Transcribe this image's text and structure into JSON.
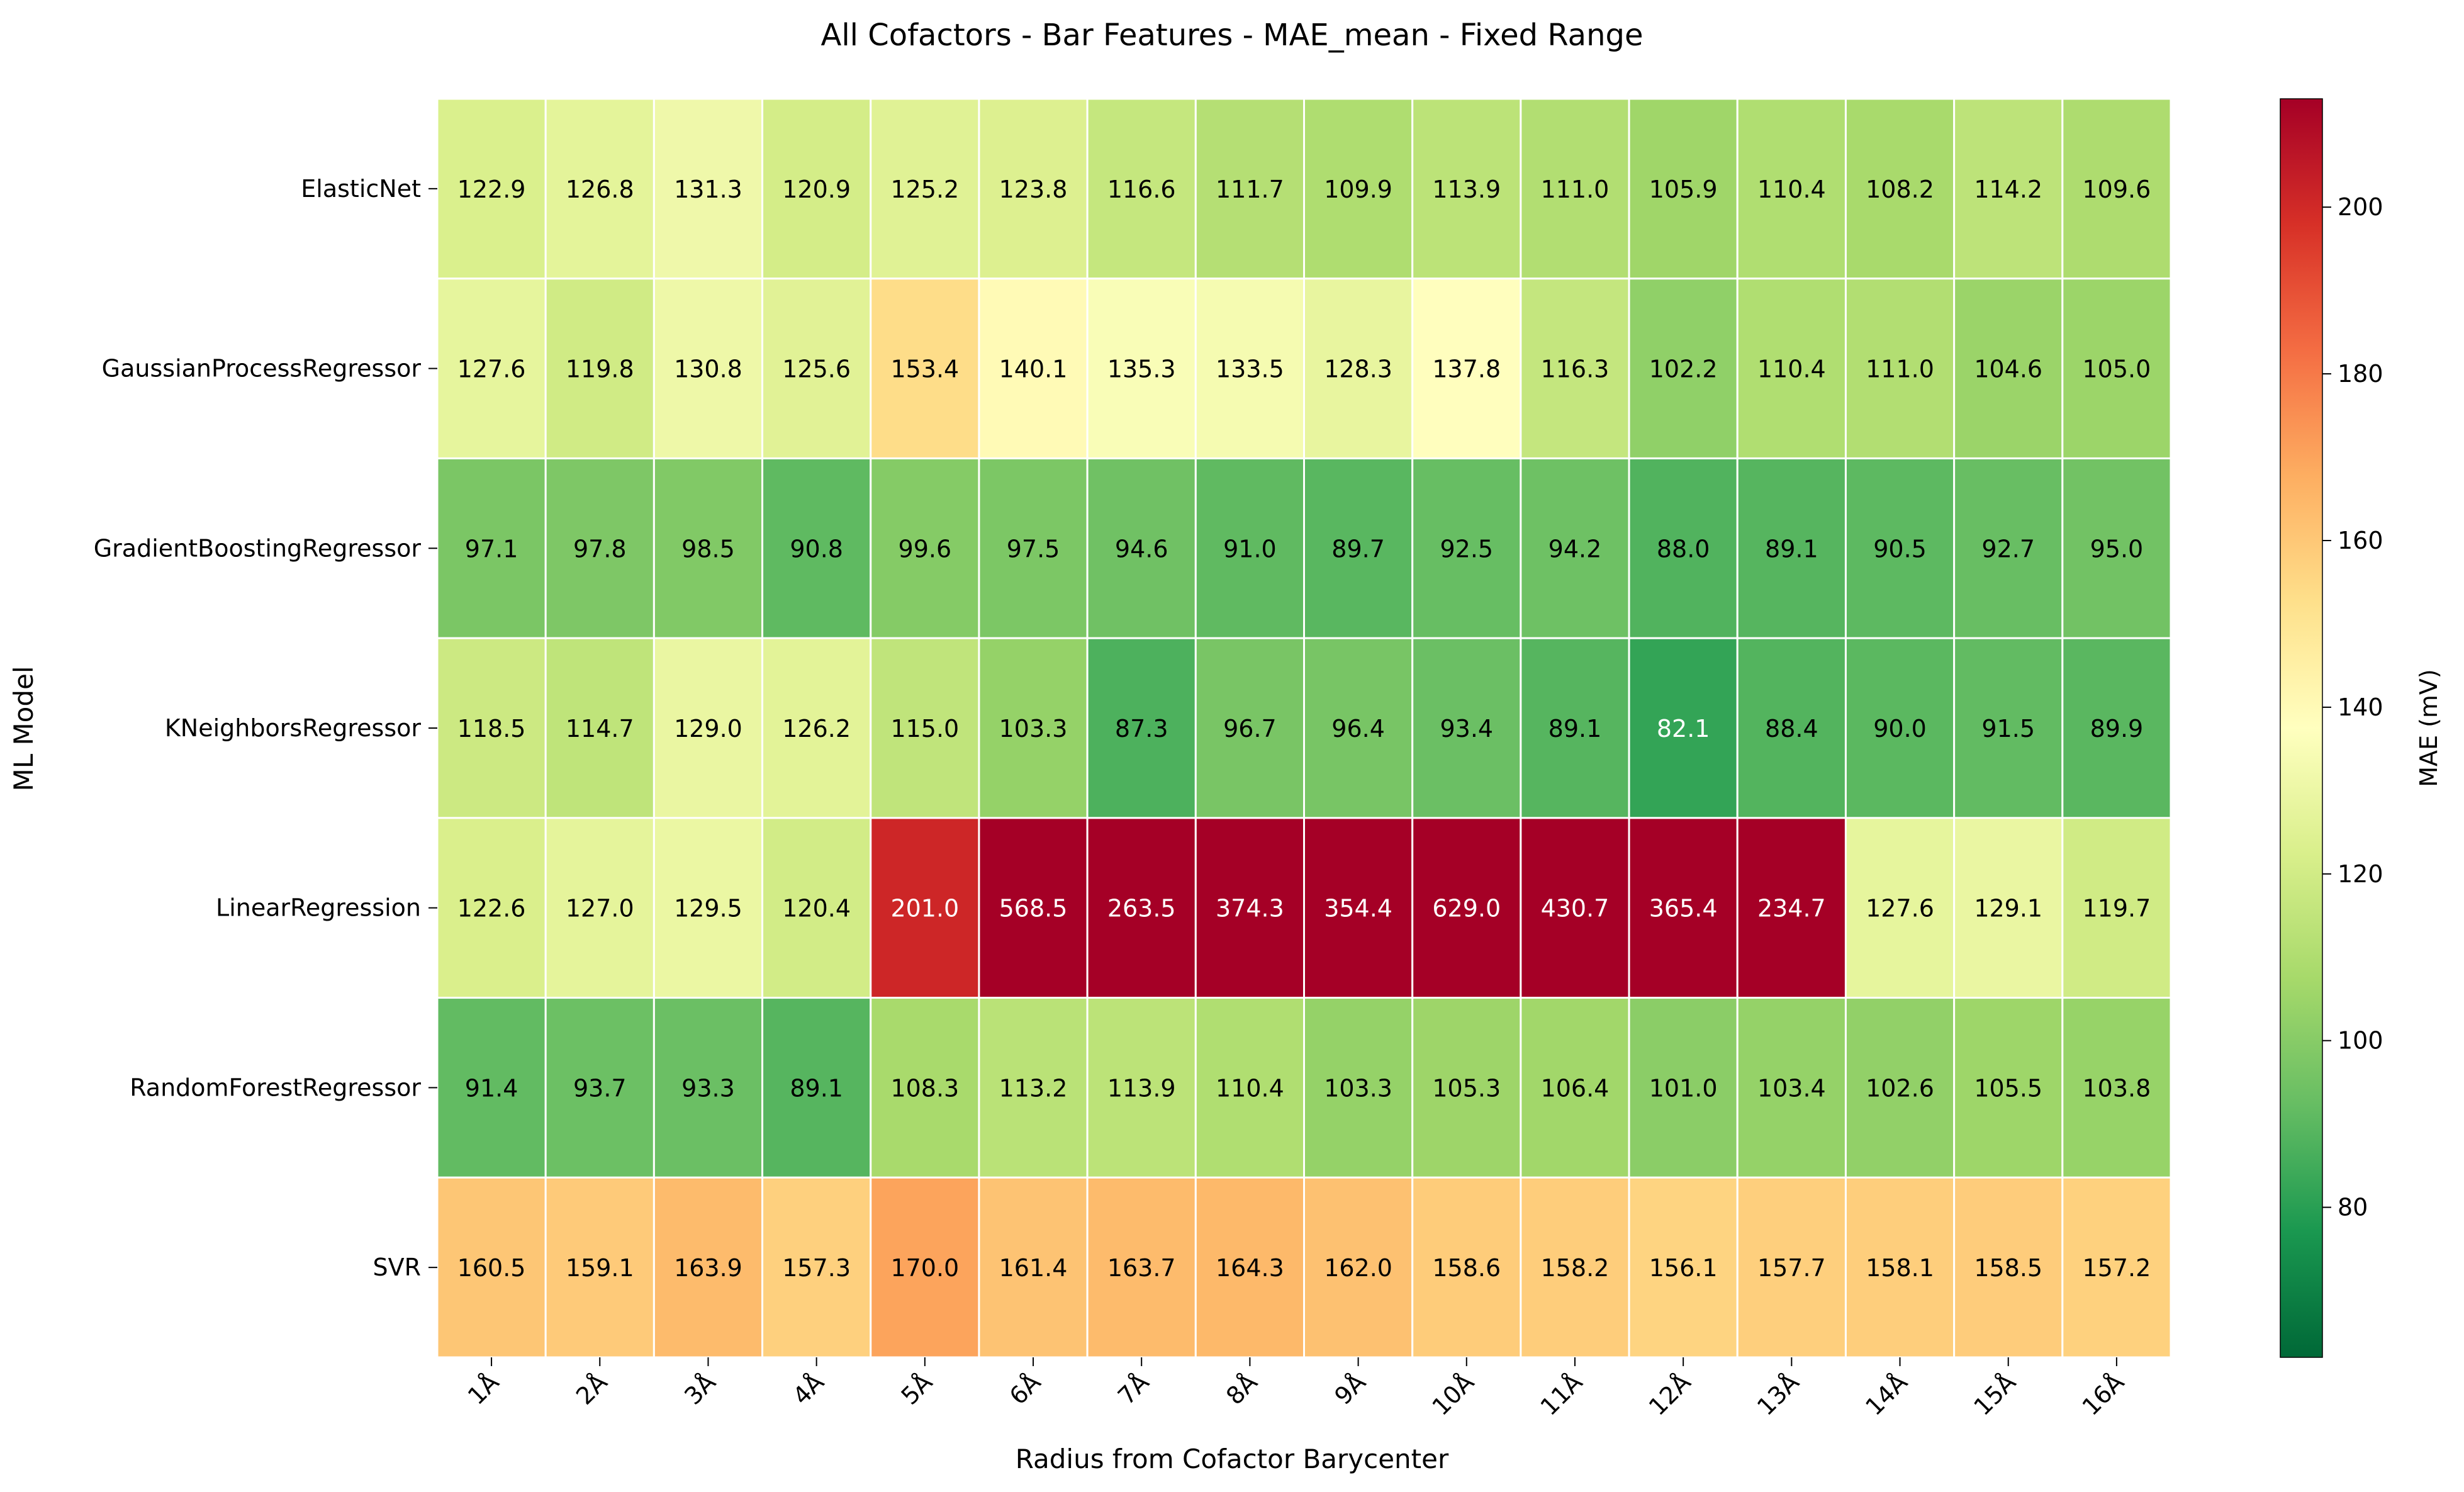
{
  "chart_data": {
    "type": "heatmap",
    "title": "All Cofactors - Bar Features - MAE_mean - Fixed Range",
    "xlabel": "Radius from Cofactor Barycenter",
    "ylabel": "ML Model",
    "colorbar_label": "MAE (mV)",
    "colormap": "RdYlGn_r",
    "vmin": 62,
    "vmax": 213,
    "colorbar_ticks": [
      80,
      100,
      120,
      140,
      160,
      180,
      200
    ],
    "grid": false,
    "annotations": true,
    "x": [
      "1Å",
      "2Å",
      "3Å",
      "4Å",
      "5Å",
      "6Å",
      "7Å",
      "8Å",
      "9Å",
      "10Å",
      "11Å",
      "12Å",
      "13Å",
      "14Å",
      "15Å",
      "16Å"
    ],
    "y": [
      "ElasticNet",
      "GaussianProcessRegressor",
      "GradientBoostingRegressor",
      "KNeighborsRegressor",
      "LinearRegression",
      "RandomForestRegressor",
      "SVR"
    ],
    "values": [
      [
        122.9,
        126.8,
        131.3,
        120.9,
        125.2,
        123.8,
        116.6,
        111.7,
        109.9,
        113.9,
        111.0,
        105.9,
        110.4,
        108.2,
        114.2,
        109.6
      ],
      [
        127.6,
        119.8,
        130.8,
        125.6,
        153.4,
        140.1,
        135.3,
        133.5,
        128.3,
        137.8,
        116.3,
        102.2,
        110.4,
        111.0,
        104.6,
        105.0
      ],
      [
        97.1,
        97.8,
        98.5,
        90.8,
        99.6,
        97.5,
        94.6,
        91.0,
        89.7,
        92.5,
        94.2,
        88.0,
        89.1,
        90.5,
        92.7,
        95.0
      ],
      [
        118.5,
        114.7,
        129.0,
        126.2,
        115.0,
        103.3,
        87.3,
        96.7,
        96.4,
        93.4,
        89.1,
        82.1,
        88.4,
        90.0,
        91.5,
        89.9
      ],
      [
        122.6,
        127.0,
        129.5,
        120.4,
        201.0,
        568.5,
        263.5,
        374.3,
        354.4,
        629.0,
        430.7,
        365.4,
        234.7,
        127.6,
        129.1,
        119.7
      ],
      [
        91.4,
        93.7,
        93.3,
        89.1,
        108.3,
        113.2,
        113.9,
        110.4,
        103.3,
        105.3,
        106.4,
        101.0,
        103.4,
        102.6,
        105.5,
        103.8
      ],
      [
        160.5,
        159.1,
        163.9,
        157.3,
        170.0,
        161.4,
        163.7,
        164.3,
        162.0,
        158.6,
        158.2,
        156.1,
        157.7,
        158.1,
        158.5,
        157.2
      ]
    ],
    "value_labels": [
      [
        "122.9",
        "126.8",
        "131.3",
        "120.9",
        "125.2",
        "123.8",
        "116.6",
        "111.7",
        "109.9",
        "113.9",
        "111.0",
        "105.9",
        "110.4",
        "108.2",
        "114.2",
        "109.6"
      ],
      [
        "127.6",
        "119.8",
        "130.8",
        "125.6",
        "153.4",
        "140.1",
        "135.3",
        "133.5",
        "128.3",
        "137.8",
        "116.3",
        "102.2",
        "110.4",
        "111.0",
        "104.6",
        "105.0"
      ],
      [
        "97.1",
        "97.8",
        "98.5",
        "90.8",
        "99.6",
        "97.5",
        "94.6",
        "91.0",
        "89.7",
        "92.5",
        "94.2",
        "88.0",
        "89.1",
        "90.5",
        "92.7",
        "95.0"
      ],
      [
        "118.5",
        "114.7",
        "129.0",
        "126.2",
        "115.0",
        "103.3",
        "87.3",
        "96.7",
        "96.4",
        "93.4",
        "89.1",
        "82.1",
        "88.4",
        "90.0",
        "91.5",
        "89.9"
      ],
      [
        "122.6",
        "127.0",
        "129.5",
        "120.4",
        "201.0",
        "568.5",
        "263.5",
        "374.3",
        "354.4",
        "629.0",
        "430.7",
        "365.4",
        "234.7",
        "127.6",
        "129.1",
        "119.7"
      ],
      [
        "91.4",
        "93.7",
        "93.3",
        "89.1",
        "108.3",
        "113.2",
        "113.9",
        "110.4",
        "103.3",
        "105.3",
        "106.4",
        "101.0",
        "103.4",
        "102.6",
        "105.5",
        "103.8"
      ],
      [
        "160.5",
        "159.1",
        "163.9",
        "157.3",
        "170.0",
        "161.4",
        "163.7",
        "164.3",
        "162.0",
        "158.6",
        "158.2",
        "156.1",
        "157.7",
        "158.1",
        "158.5",
        "157.2"
      ]
    ]
  }
}
